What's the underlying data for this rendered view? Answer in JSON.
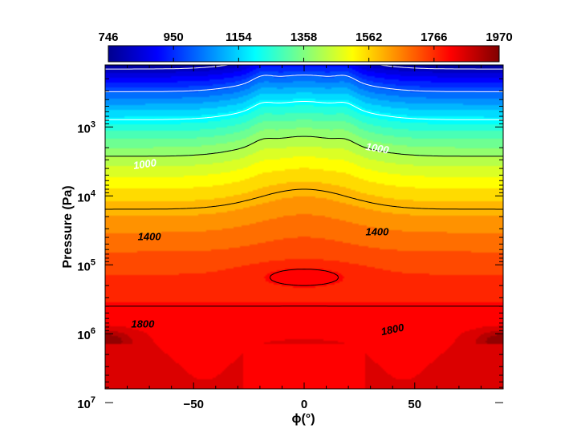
{
  "chart_data": {
    "type": "heatmap",
    "title": "",
    "xlabel": "ϕ(°)",
    "ylabel": "Pressure (Pa)",
    "xlim": [
      -90,
      90
    ],
    "ylim_log10": [
      2.1,
      6.8
    ],
    "y_scale": "log",
    "x_ticks": [
      {
        "value": -50,
        "label": "−50"
      },
      {
        "value": 0,
        "label": "0"
      },
      {
        "value": 50,
        "label": "50"
      }
    ],
    "y_ticks": [
      {
        "exp": 3,
        "label": "10",
        "sup": "3"
      },
      {
        "exp": 4,
        "label": "10",
        "sup": "4"
      },
      {
        "exp": 5,
        "label": "10",
        "sup": "5"
      },
      {
        "exp": 6,
        "label": "10",
        "sup": "6"
      },
      {
        "exp": 7,
        "label": "10",
        "sup": "7"
      }
    ],
    "colorbar": {
      "range": [
        746,
        1970
      ],
      "ticks": [
        "746",
        "950",
        "1154",
        "1358",
        "1562",
        "1766",
        "1970"
      ],
      "colormap": [
        "#00008f",
        "#0000ff",
        "#0080ff",
        "#00ffff",
        "#80ff80",
        "#ffff00",
        "#ff8000",
        "#ff0000",
        "#800000"
      ]
    },
    "contour_levels": [
      {
        "value": 800,
        "color": "#ffffff"
      },
      {
        "value": 1000,
        "color": "#ffffff"
      },
      {
        "value": 1200,
        "color": "#ffffff"
      },
      {
        "value": 1400,
        "color": "#000000"
      },
      {
        "value": 1600,
        "color": "#000000"
      },
      {
        "value": 1800,
        "color": "#000000"
      }
    ],
    "contour_labels": [
      {
        "text": "1000",
        "phi": -72,
        "log10p": 3.55,
        "color": "#ffffff",
        "angle": -8
      },
      {
        "text": "1000",
        "phi": 33,
        "log10p": 3.32,
        "color": "#ffffff",
        "angle": 10
      },
      {
        "text": "1400",
        "phi": -70,
        "log10p": 4.6,
        "color": "#000000",
        "angle": 0
      },
      {
        "text": "1400",
        "phi": 33,
        "log10p": 4.53,
        "color": "#000000",
        "angle": 0
      },
      {
        "text": "1800",
        "phi": -73,
        "log10p": 5.87,
        "color": "#000000",
        "angle": 0
      },
      {
        "text": "1800",
        "phi": 40,
        "log10p": 5.95,
        "color": "#000000",
        "angle": -12
      }
    ]
  }
}
